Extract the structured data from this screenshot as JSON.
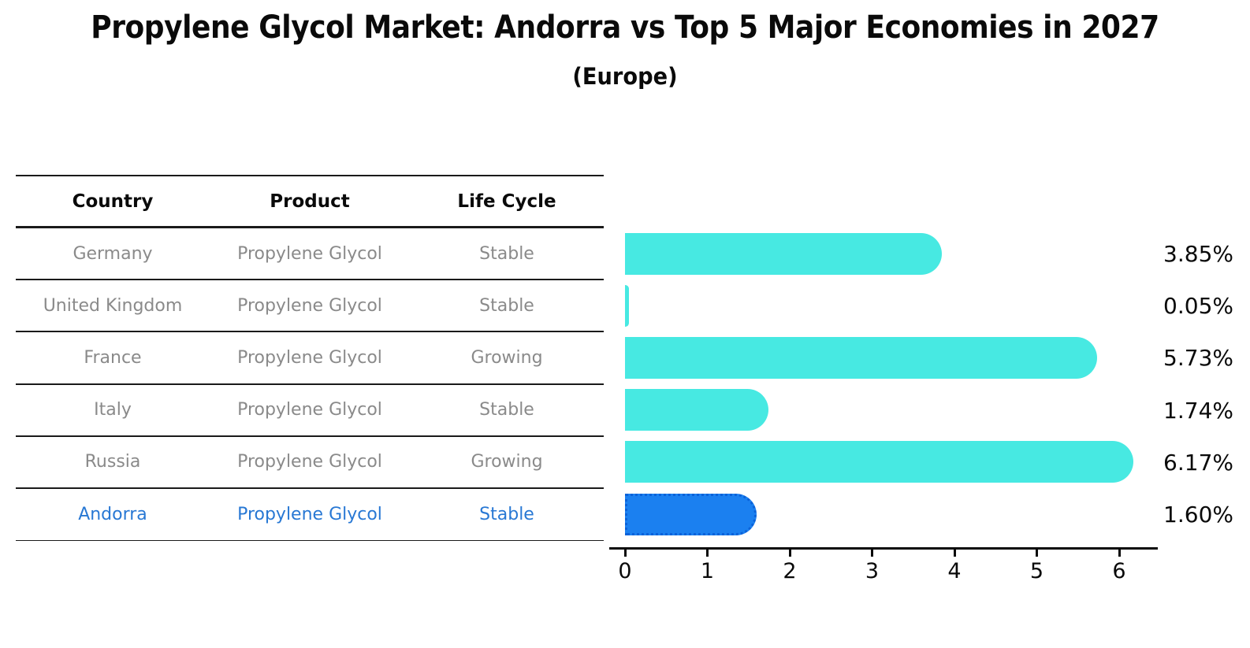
{
  "title": "Propylene Glycol Market: Andorra vs Top 5 Major Economies in 2027",
  "subtitle": "(Europe)",
  "table": {
    "headers": [
      "Country",
      "Product",
      "Life Cycle"
    ],
    "rows": [
      {
        "country": "Germany",
        "product": "Propylene Glycol",
        "life_cycle": "Stable",
        "highlight": false
      },
      {
        "country": "United Kingdom",
        "product": "Propylene Glycol",
        "life_cycle": "Stable",
        "highlight": false
      },
      {
        "country": "France",
        "product": "Propylene Glycol",
        "life_cycle": "Growing",
        "highlight": false
      },
      {
        "country": "Italy",
        "product": "Propylene Glycol",
        "life_cycle": "Stable",
        "highlight": false
      },
      {
        "country": "Russia",
        "product": "Propylene Glycol",
        "life_cycle": "Growing",
        "highlight": false
      },
      {
        "country": "Andorra",
        "product": "Propylene Glycol",
        "life_cycle": "Stable",
        "highlight": true
      }
    ]
  },
  "chart_data": {
    "type": "bar",
    "orientation": "horizontal",
    "title": "Propylene Glycol Market: Andorra vs Top 5 Major Economies in 2027",
    "subtitle": "(Europe)",
    "categories": [
      "Germany",
      "United Kingdom",
      "France",
      "Italy",
      "Russia",
      "Andorra"
    ],
    "values": [
      3.85,
      0.05,
      5.73,
      1.74,
      6.17,
      1.6
    ],
    "value_labels": [
      "3.85%",
      "0.05%",
      "5.73%",
      "1.74%",
      "6.17%",
      "1.60%"
    ],
    "highlight_index": 5,
    "xlabel": "",
    "ylabel": "",
    "xticks": [
      0,
      1,
      2,
      3,
      4,
      5,
      6
    ],
    "xlim": [
      0,
      6.48
    ],
    "grid": false,
    "legend": false
  },
  "colors": {
    "bar": "#47E9E2",
    "highlight_bar": "#1B80F0",
    "highlight_border": "#0B62D9",
    "highlight_text": "#2878D4",
    "row_text": "#8a8a8a",
    "header_text": "#0a0a0a",
    "line": "#1a1a1a",
    "axis": "#0a0a0a"
  }
}
